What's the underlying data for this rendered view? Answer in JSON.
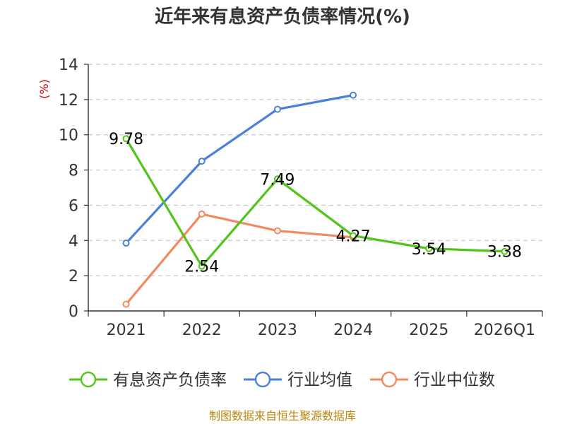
{
  "chart_data": {
    "type": "line",
    "title": "近年来有息资产负债率情况(%)",
    "ylabel": "(%)",
    "xlabel": "",
    "categories": [
      "2021",
      "2022",
      "2023",
      "2024",
      "2025",
      "2026Q1"
    ],
    "ylim": [
      0,
      14
    ],
    "yticks": [
      0,
      2,
      4,
      6,
      8,
      10,
      12,
      14
    ],
    "grid": true,
    "legend_position": "bottom",
    "series": [
      {
        "name": "有息资产负债率",
        "color": "#52c41a",
        "values": [
          9.78,
          2.54,
          7.49,
          4.27,
          3.54,
          3.38
        ],
        "labels": [
          "9.78",
          "2.54",
          "7.49",
          "4.27",
          "3.54",
          "3.38"
        ]
      },
      {
        "name": "行业均值",
        "color": "#4a7fdb",
        "values": [
          3.85,
          8.5,
          11.45,
          12.25,
          null,
          null
        ]
      },
      {
        "name": "行业中位数",
        "color": "#f4895f",
        "values": [
          0.38,
          5.5,
          4.55,
          4.18,
          null,
          null
        ]
      }
    ],
    "source": "制图数据来自恒生聚源数据库"
  }
}
